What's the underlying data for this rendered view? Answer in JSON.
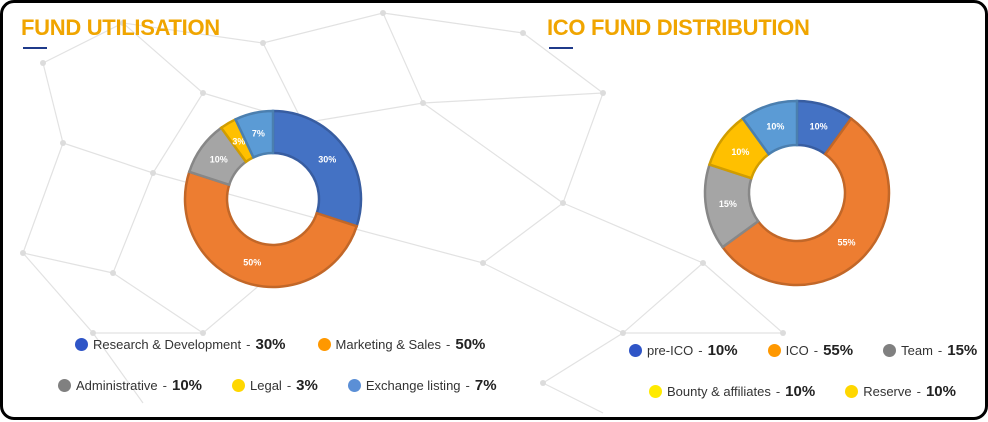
{
  "chart_data": [
    {
      "type": "pie",
      "title": "FUND UTILISATION",
      "slices": [
        {
          "label": "Research & Development",
          "value": 30,
          "value_label": "30%",
          "color": "#4472c4"
        },
        {
          "label": "Marketing & Sales",
          "value": 50,
          "value_label": "50%",
          "color": "#ed7d31"
        },
        {
          "label": "Administrative",
          "value": 10,
          "value_label": "10%",
          "color": "#a5a5a5"
        },
        {
          "label": "Legal",
          "value": 3,
          "value_label": "3%",
          "color": "#ffc000"
        },
        {
          "label": "Exchange listing",
          "value": 7,
          "value_label": "7%",
          "color": "#5b9bd5"
        }
      ],
      "legend_colors": [
        "#2f55c7",
        "#ff9800",
        "#808080",
        "#ffd700",
        "#5b8fd6"
      ],
      "legend_placement": "bottom"
    },
    {
      "type": "pie",
      "title": "ICO FUND DISTRIBUTION",
      "slices": [
        {
          "label": "pre-ICO",
          "value": 10,
          "value_label": "10%",
          "color": "#4472c4"
        },
        {
          "label": "ICO",
          "value": 55,
          "value_label": "55%",
          "color": "#ed7d31"
        },
        {
          "label": "Team",
          "value": 15,
          "value_label": "15%",
          "color": "#a5a5a5"
        },
        {
          "label": "Bounty & affiliates",
          "value": 10,
          "value_label": "10%",
          "color": "#ffc000"
        },
        {
          "label": "Reserve",
          "value": 10,
          "value_label": "10%",
          "color": "#5b9bd5"
        }
      ],
      "legend_colors": [
        "#2f55c7",
        "#ff9800",
        "#808080",
        "#ffea00",
        "#ffd700"
      ],
      "legend_placement": "bottom"
    }
  ]
}
